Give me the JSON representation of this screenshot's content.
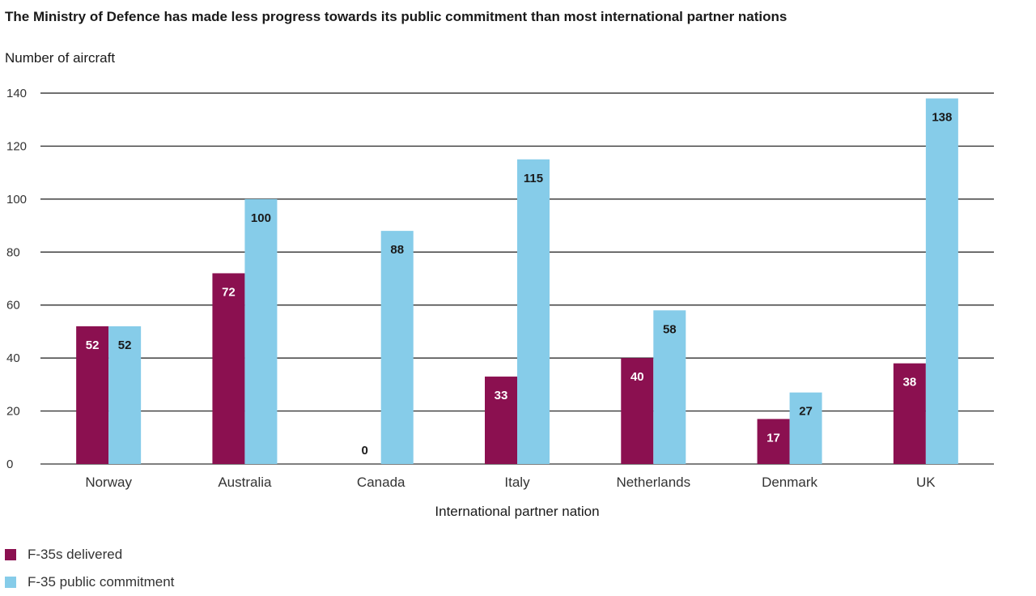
{
  "chart_data": {
    "type": "bar",
    "title": "The Ministry of Defence has made less progress towards its public commitment than most international partner nations",
    "ylabel": "Number of aircraft",
    "xlabel": "International partner nation",
    "categories": [
      "Norway",
      "Australia",
      "Canada",
      "Italy",
      "Netherlands",
      "Denmark",
      "UK"
    ],
    "series": [
      {
        "name": "F-35s delivered",
        "values": [
          52,
          72,
          0,
          33,
          40,
          17,
          38
        ],
        "color": "#8b1050",
        "label_color": "#ffffff"
      },
      {
        "name": "F-35 public commitment",
        "values": [
          52,
          100,
          88,
          115,
          58,
          27,
          138
        ],
        "color": "#86cce9",
        "label_color": "#1a1a1a"
      }
    ],
    "ylim": [
      0,
      140
    ],
    "yticks": [
      0,
      20,
      40,
      60,
      80,
      100,
      120,
      140
    ],
    "grid": true,
    "legend_position": "bottom-left"
  }
}
